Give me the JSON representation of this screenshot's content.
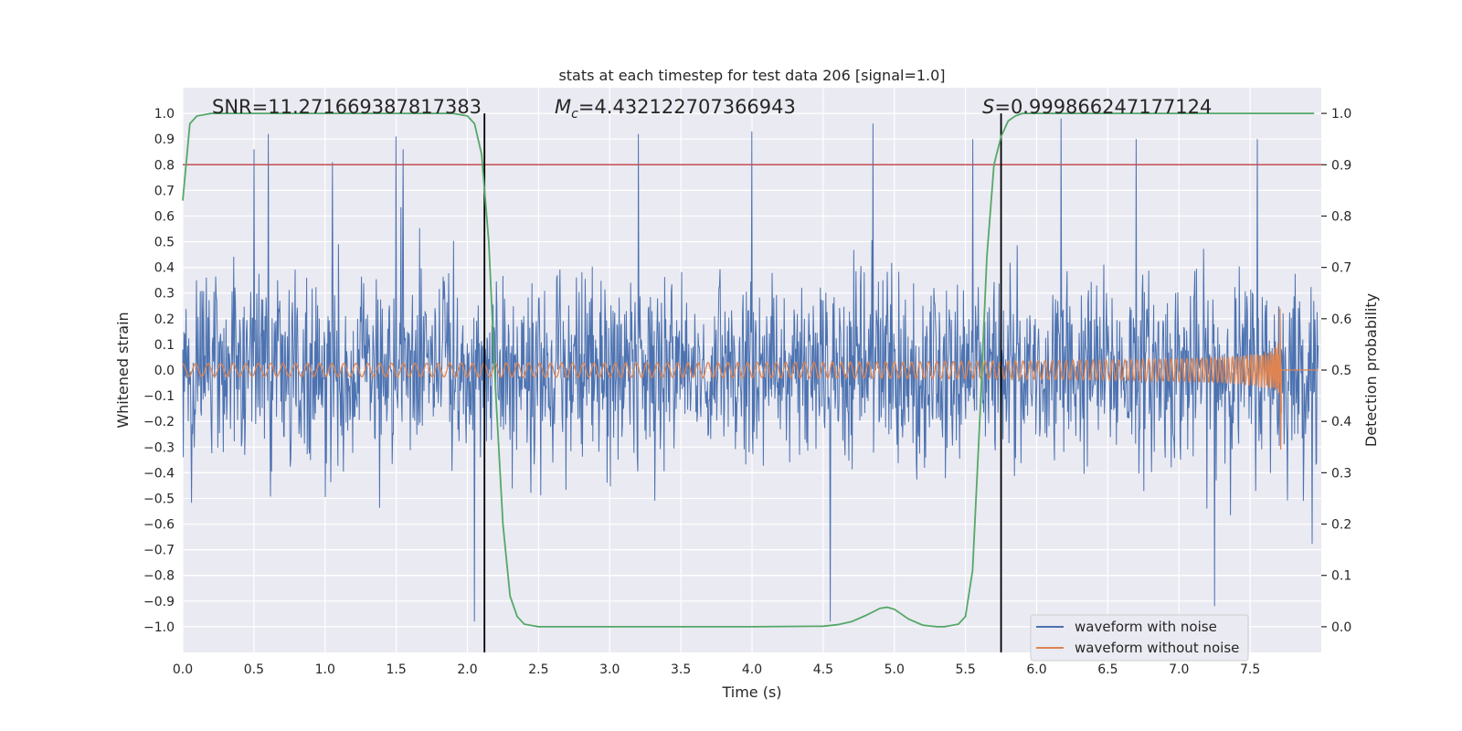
{
  "chart_data": {
    "type": "line",
    "title": "stats at each timestep for test data 206 [signal=1.0]",
    "xlabel": "Time (s)",
    "ylabel": "Whitened strain",
    "ylabel_right": "Detection probability",
    "xlim": [
      0.0,
      8.0
    ],
    "ylim": [
      -1.1,
      1.1
    ],
    "ylim_right": [
      -0.05,
      1.05
    ],
    "x_ticks": [
      0.0,
      0.5,
      1.0,
      1.5,
      2.0,
      2.5,
      3.0,
      3.5,
      4.0,
      4.5,
      5.0,
      5.5,
      6.0,
      6.5,
      7.0,
      7.5
    ],
    "x_tick_labels": [
      "0.0",
      "0.5",
      "1.0",
      "1.5",
      "2.0",
      "2.5",
      "3.0",
      "3.5",
      "4.0",
      "4.5",
      "5.0",
      "5.5",
      "6.0",
      "6.5",
      "7.0",
      "7.5"
    ],
    "y_ticks": [
      1.0,
      0.9,
      0.8,
      0.7,
      0.6,
      0.5,
      0.4,
      0.3,
      0.2,
      0.1,
      0.0,
      -0.1,
      -0.2,
      -0.3,
      -0.4,
      -0.5,
      -0.6,
      -0.7,
      -0.8,
      -0.9,
      -1.0
    ],
    "y_tick_labels": [
      "1.0",
      "0.9",
      "0.8",
      "0.7",
      "0.6",
      "0.5",
      "0.4",
      "0.3",
      "0.2",
      "0.1",
      "0.0",
      "−0.1",
      "−0.2",
      "−0.3",
      "−0.4",
      "−0.5",
      "−0.6",
      "−0.7",
      "−0.8",
      "−0.9",
      "−1.0"
    ],
    "y_right_ticks": [
      1.0,
      0.9,
      0.8,
      0.7,
      0.6,
      0.5,
      0.4,
      0.3,
      0.2,
      0.1,
      0.0
    ],
    "y_right_tick_labels": [
      "1.0",
      "0.9",
      "0.8",
      "0.7",
      "0.6",
      "0.5",
      "0.4",
      "0.3",
      "0.2",
      "0.1",
      "0.0"
    ],
    "annotations": {
      "snr": "SNR=11.271669387817383",
      "mc_symbol": "M",
      "mc_sub": "c",
      "mc_value": "=4.432122707366943",
      "s_symbol": "S",
      "s_value": "=0.999866247177124"
    },
    "threshold": {
      "value": 0.9,
      "axis": "right",
      "color": "#c44e52"
    },
    "vlines": [
      2.12,
      5.75
    ],
    "series": [
      {
        "name": "waveform with noise",
        "color": "#4c72b0",
        "axis": "left",
        "kind": "noise",
        "envelope_pos": 0.9,
        "envelope_neg": -0.9,
        "spike_times": [
          0.5,
          0.6,
          1.05,
          1.5,
          1.55,
          2.05,
          3.2,
          4.0,
          4.55,
          4.85,
          5.55,
          6.17,
          6.7,
          7.25,
          7.55
        ],
        "spike_values": [
          0.86,
          0.92,
          0.81,
          0.91,
          0.86,
          -0.98,
          0.92,
          0.93,
          -0.98,
          0.96,
          0.9,
          0.98,
          0.9,
          -0.92,
          0.9
        ]
      },
      {
        "name": "waveform without noise",
        "color": "#dd8452",
        "axis": "left",
        "kind": "chirp",
        "t_end": 7.72,
        "amp_start": 0.025,
        "amp_peak": 0.24,
        "amp_neg_peak": -0.31
      },
      {
        "name": "detection probability",
        "color": "#55a868",
        "axis": "right",
        "x": [
          0.0,
          0.05,
          0.1,
          0.2,
          0.5,
          1.0,
          1.5,
          1.9,
          2.0,
          2.05,
          2.1,
          2.15,
          2.2,
          2.25,
          2.3,
          2.35,
          2.4,
          2.5,
          3.0,
          3.5,
          4.0,
          4.5,
          4.6,
          4.7,
          4.8,
          4.9,
          4.95,
          5.0,
          5.1,
          5.2,
          5.3,
          5.35,
          5.45,
          5.5,
          5.55,
          5.6,
          5.65,
          5.7,
          5.75,
          5.8,
          5.85,
          5.9,
          6.0,
          7.0,
          7.95
        ],
        "y": [
          0.83,
          0.98,
          0.995,
          1.0,
          1.0,
          1.0,
          1.0,
          1.0,
          0.995,
          0.98,
          0.92,
          0.75,
          0.45,
          0.2,
          0.06,
          0.02,
          0.005,
          0.0,
          0.0,
          0.0,
          0.0,
          0.001,
          0.004,
          0.01,
          0.022,
          0.036,
          0.038,
          0.034,
          0.015,
          0.003,
          0.0,
          0.0,
          0.005,
          0.02,
          0.11,
          0.4,
          0.72,
          0.9,
          0.955,
          0.985,
          0.995,
          1.0,
          1.0,
          1.0,
          1.0
        ]
      }
    ],
    "legend": {
      "position": "lower-right",
      "entries": [
        {
          "label": "waveform with noise",
          "color": "#4c72b0"
        },
        {
          "label": "waveform without noise",
          "color": "#dd8452"
        }
      ]
    }
  }
}
